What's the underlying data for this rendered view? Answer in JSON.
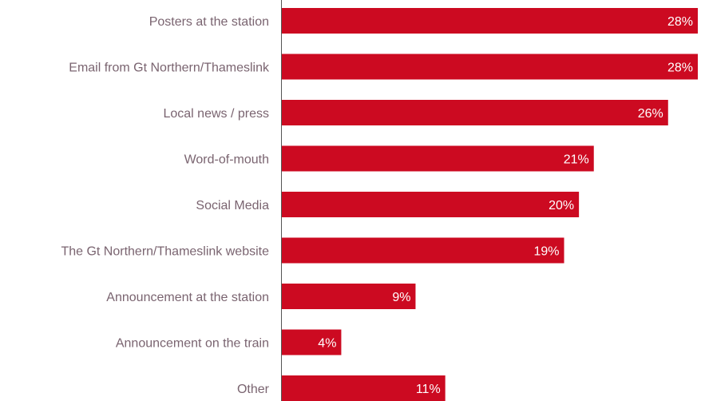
{
  "chart_data": {
    "type": "bar",
    "orientation": "horizontal",
    "title": "",
    "xlabel": "",
    "ylabel": "",
    "xlim": [
      0,
      28
    ],
    "grid": false,
    "legend": "none",
    "colors": {
      "bar": "#cc0a21",
      "category_text": "#7a6470",
      "value_text": "#ffffff",
      "axis": "#555555"
    },
    "categories": [
      "Posters at the station",
      "Email from Gt Northern/Thameslink",
      "Local news / press",
      "Word-of-mouth",
      "Social Media",
      "The Gt Northern/Thameslink website",
      "Announcement at the station",
      "Announcement on the train",
      "Other"
    ],
    "values": [
      28,
      28,
      26,
      21,
      20,
      19,
      9,
      4,
      11
    ],
    "value_labels": [
      "28%",
      "28%",
      "26%",
      "21%",
      "20%",
      "19%",
      "9%",
      "4%",
      "11%"
    ]
  }
}
